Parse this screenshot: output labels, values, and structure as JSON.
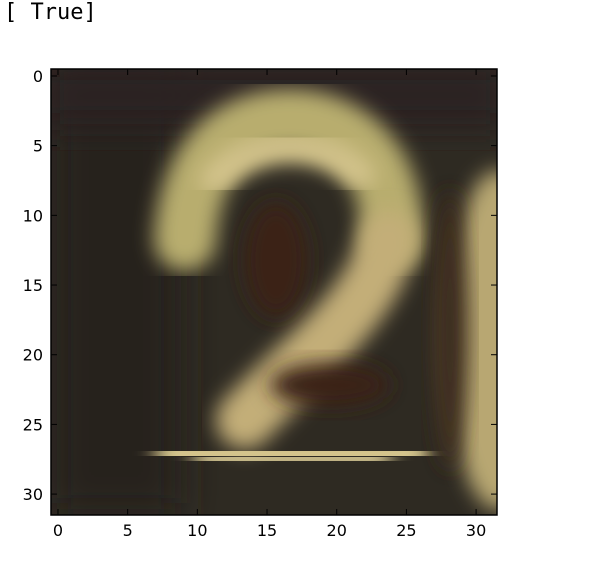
{
  "output": {
    "text": "[ True]"
  },
  "chart_data": {
    "type": "image",
    "xticks": [
      "0",
      "5",
      "10",
      "15",
      "20",
      "25",
      "30"
    ],
    "yticks": [
      "0",
      "5",
      "10",
      "15",
      "20",
      "25",
      "30"
    ],
    "xlim": [
      -0.5,
      31.5
    ],
    "ylim": [
      31.5,
      -0.5
    ],
    "image_size": [
      32,
      32
    ],
    "grid": false,
    "image_subject": "blurry digit 2",
    "colors": {
      "background": "#2e2a22",
      "digit": "#c9b57a",
      "digit_highlight": "#dccb92",
      "shadow": "#3a2418",
      "right_shape": "#b8a772"
    }
  }
}
